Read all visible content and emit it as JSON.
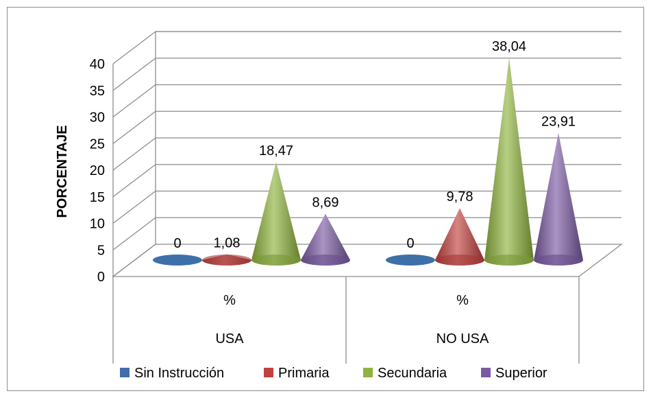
{
  "chart_data": {
    "type": "bar",
    "subtype": "3d-cone",
    "title": "",
    "ylabel": "PORCENTAJE",
    "ylim": [
      0,
      40
    ],
    "yticks": [
      0,
      5,
      10,
      15,
      20,
      25,
      30,
      35,
      40
    ],
    "grid": true,
    "legend_position": "bottom",
    "category_groups": [
      {
        "label": "USA",
        "sublabel": "%"
      },
      {
        "label": "NO USA",
        "sublabel": "%"
      }
    ],
    "series": [
      {
        "name": "Sin Instrucción",
        "color": "#3e6fa8",
        "values": [
          0,
          0
        ],
        "labels": [
          "0",
          "0"
        ]
      },
      {
        "name": "Primaria",
        "color": "#c0413f",
        "values": [
          1.08,
          9.78
        ],
        "labels": [
          "1,08",
          "9,78"
        ]
      },
      {
        "name": "Secundaria",
        "color": "#8fb33e",
        "values": [
          18.47,
          38.04
        ],
        "labels": [
          "18,47",
          "38,04"
        ]
      },
      {
        "name": "Superior",
        "color": "#7a5aa3",
        "values": [
          8.69,
          23.91
        ],
        "labels": [
          "8,69",
          "23,91"
        ]
      }
    ]
  }
}
